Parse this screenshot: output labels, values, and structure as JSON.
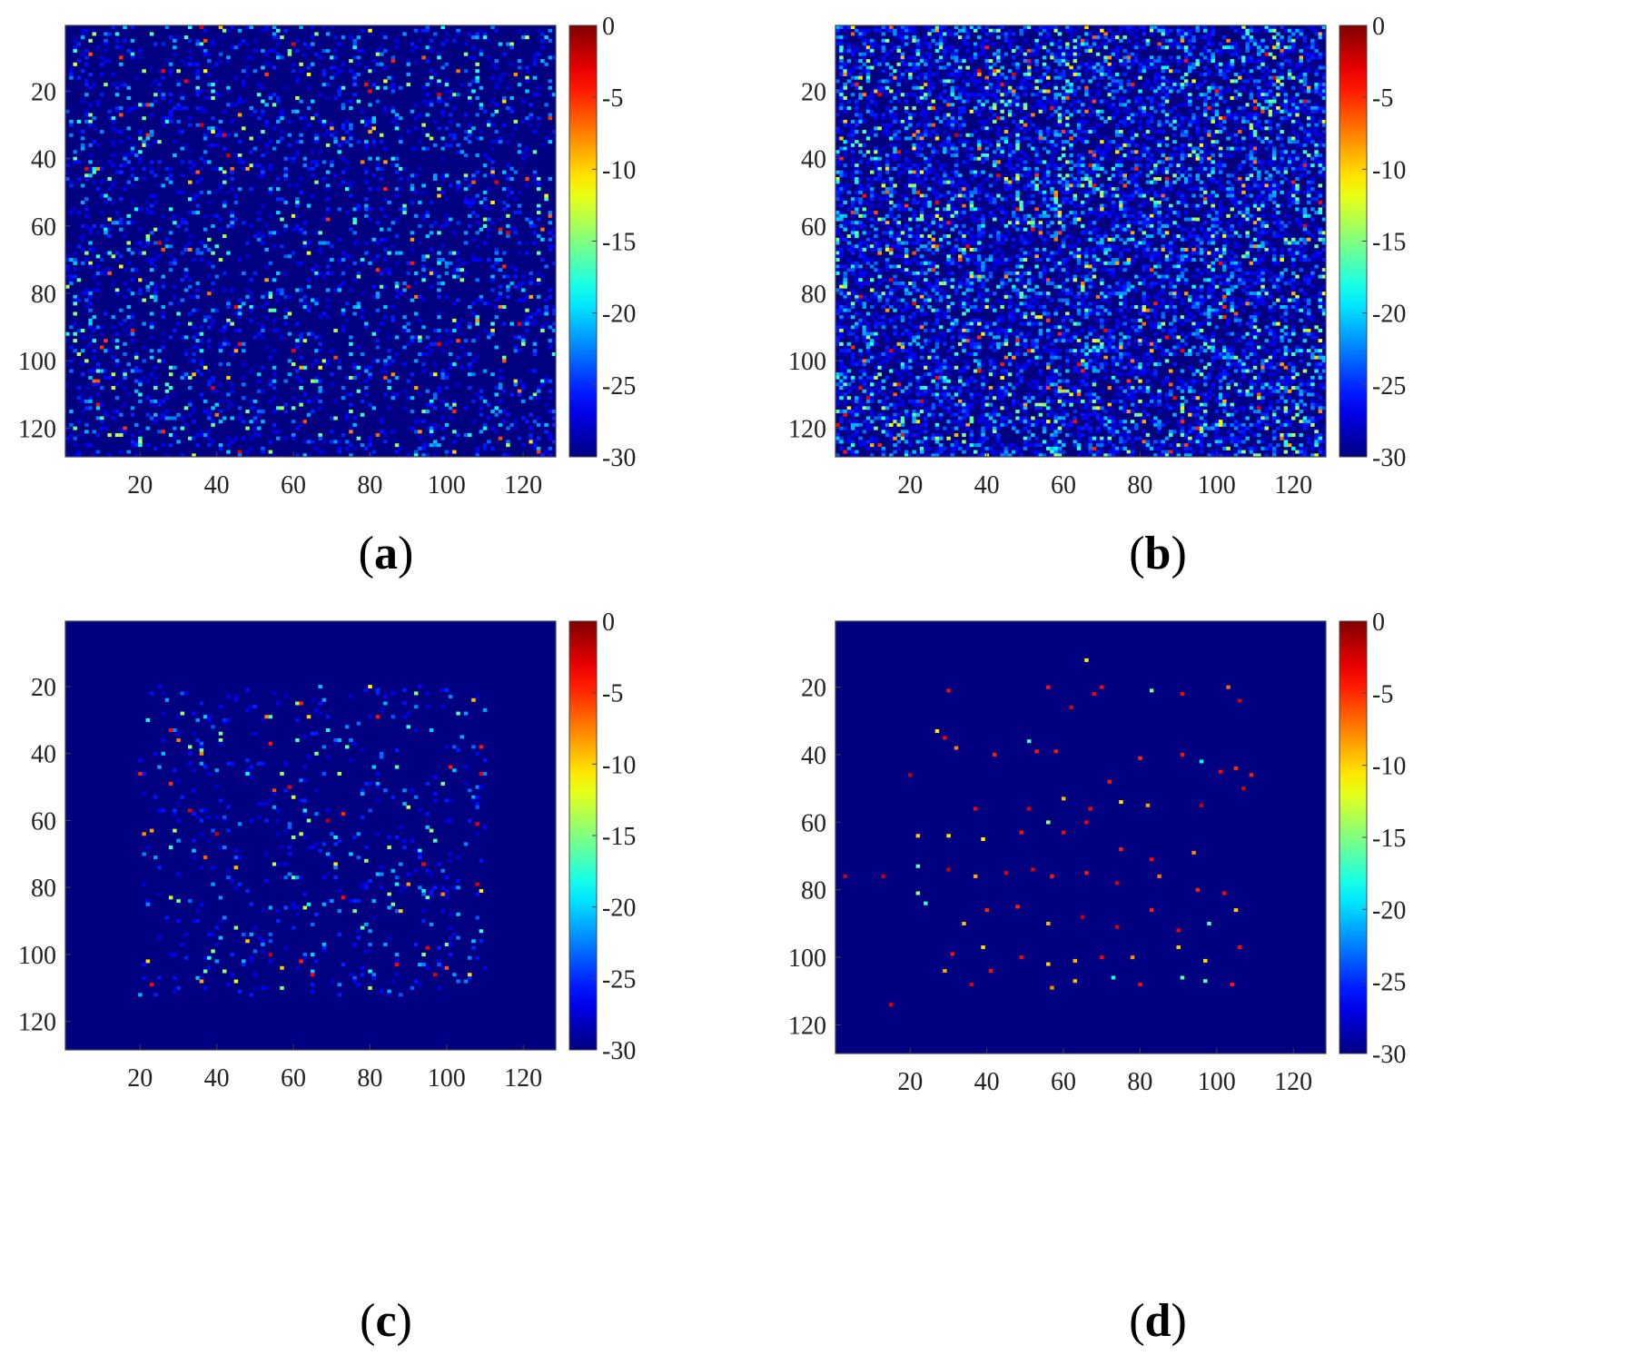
{
  "chart_data": [
    {
      "type": "heatmap",
      "panel_label": "a",
      "grid_size": [
        128,
        128
      ],
      "xlim": [
        0.5,
        128.5
      ],
      "ylim": [
        0.5,
        128.5
      ],
      "y_reversed": true,
      "x_ticks": [
        20,
        40,
        60,
        80,
        100,
        120
      ],
      "y_ticks": [
        20,
        40,
        60,
        80,
        100,
        120
      ],
      "colorbar": {
        "colormap": "jet",
        "min": -30,
        "max": 0,
        "ticks": [
          0,
          -5,
          -10,
          -15,
          -20,
          -25,
          -30
        ]
      },
      "background_value": -30,
      "scatter_density": 0.16,
      "scatter_region": [
        1,
        128,
        1,
        128
      ],
      "highlights": [
        [
          36,
          30
        ],
        [
          46,
          27
        ],
        [
          80,
          20
        ],
        [
          98,
          21
        ],
        [
          25,
          35
        ],
        [
          73,
          34
        ],
        [
          43,
          39
        ],
        [
          98,
          51
        ],
        [
          76,
          58
        ],
        [
          22,
          64
        ],
        [
          95,
          69
        ],
        [
          53,
          76
        ],
        [
          38,
          80
        ],
        [
          45,
          84
        ],
        [
          108,
          88
        ],
        [
          39,
          108
        ],
        [
          62,
          102
        ],
        [
          82,
          73
        ],
        [
          60,
          97
        ],
        [
          65,
          106
        ]
      ]
    },
    {
      "type": "heatmap",
      "panel_label": "b",
      "grid_size": [
        128,
        128
      ],
      "xlim": [
        0.5,
        128.5
      ],
      "ylim": [
        0.5,
        128.5
      ],
      "y_reversed": true,
      "x_ticks": [
        20,
        40,
        60,
        80,
        100,
        120
      ],
      "y_ticks": [
        20,
        40,
        60,
        80,
        100,
        120
      ],
      "colorbar": {
        "colormap": "jet",
        "min": -30,
        "max": 0,
        "ticks": [
          0,
          -5,
          -10,
          -15,
          -20,
          -25,
          -30
        ]
      },
      "background_value": -30,
      "scatter_density": 0.45,
      "scatter_region": [
        1,
        128,
        1,
        128
      ],
      "highlights": [
        [
          32,
          33
        ],
        [
          56,
          20
        ],
        [
          78,
          18
        ],
        [
          100,
          20
        ],
        [
          43,
          41
        ],
        [
          70,
          55
        ],
        [
          77,
          70
        ],
        [
          54,
          62
        ],
        [
          92,
          80
        ],
        [
          102,
          84
        ],
        [
          38,
          103
        ],
        [
          64,
          101
        ],
        [
          87,
          93
        ],
        [
          108,
          46
        ],
        [
          26,
          64
        ],
        [
          45,
          75
        ]
      ]
    },
    {
      "type": "heatmap",
      "panel_label": "c",
      "grid_size": [
        128,
        128
      ],
      "xlim": [
        0.5,
        128.5
      ],
      "ylim": [
        0.5,
        128.5
      ],
      "y_reversed": true,
      "x_ticks": [
        20,
        40,
        60,
        80,
        100,
        120
      ],
      "y_ticks": [
        20,
        40,
        60,
        80,
        100,
        120
      ],
      "colorbar": {
        "colormap": "jet",
        "min": -30,
        "max": 0,
        "ticks": [
          0,
          -5,
          -10,
          -15,
          -20,
          -25,
          -30
        ]
      },
      "background_value": -30,
      "scatter_density": 0.07,
      "scatter_region": [
        20,
        110,
        20,
        112
      ],
      "highlights": [
        [
          20,
          46
        ],
        [
          28,
          33
        ],
        [
          30,
          36
        ],
        [
          53,
          29
        ],
        [
          62,
          25
        ],
        [
          80,
          20
        ],
        [
          92,
          22
        ],
        [
          107,
          24
        ],
        [
          109,
          38
        ],
        [
          109,
          46
        ],
        [
          36,
          40
        ],
        [
          54,
          37
        ],
        [
          87,
          44
        ],
        [
          40,
          64
        ],
        [
          45,
          74
        ],
        [
          63,
          57
        ],
        [
          69,
          60
        ],
        [
          79,
          72
        ],
        [
          94,
          73
        ],
        [
          99,
          82
        ],
        [
          108,
          79
        ],
        [
          36,
          108
        ],
        [
          54,
          100
        ],
        [
          62,
          102
        ],
        [
          65,
          106
        ],
        [
          87,
          103
        ],
        [
          97,
          106
        ],
        [
          106,
          106
        ],
        [
          23,
          63
        ],
        [
          33,
          57
        ],
        [
          101,
          44
        ]
      ]
    },
    {
      "type": "heatmap",
      "panel_label": "d",
      "grid_size": [
        128,
        128
      ],
      "xlim": [
        0.5,
        128.5
      ],
      "ylim": [
        0.5,
        128.5
      ],
      "y_reversed": true,
      "x_ticks": [
        20,
        40,
        60,
        80,
        100,
        120
      ],
      "y_ticks": [
        20,
        40,
        60,
        80,
        100,
        120
      ],
      "colorbar": {
        "colormap": "jet",
        "min": -30,
        "max": 0,
        "ticks": [
          0,
          -5,
          -10,
          -15,
          -20,
          -25,
          -30
        ]
      },
      "background_value": -30,
      "scatter_density": 0,
      "scatter_region": [
        20,
        110,
        20,
        112
      ],
      "highlights": [
        [
          30,
          21
        ],
        [
          56,
          20
        ],
        [
          62,
          26
        ],
        [
          68,
          22
        ],
        [
          70,
          20
        ],
        [
          83,
          21
        ],
        [
          91,
          22
        ],
        [
          103,
          20
        ],
        [
          106,
          24
        ],
        [
          27,
          33
        ],
        [
          29,
          35
        ],
        [
          20,
          46
        ],
        [
          32,
          38
        ],
        [
          42,
          40
        ],
        [
          51,
          36
        ],
        [
          53,
          39
        ],
        [
          58,
          39
        ],
        [
          72,
          48
        ],
        [
          80,
          41
        ],
        [
          91,
          40
        ],
        [
          96,
          42
        ],
        [
          101,
          45
        ],
        [
          105,
          44
        ],
        [
          109,
          46
        ],
        [
          37,
          56
        ],
        [
          51,
          56
        ],
        [
          60,
          53
        ],
        [
          67,
          56
        ],
        [
          75,
          54
        ],
        [
          82,
          55
        ],
        [
          96,
          55
        ],
        [
          107,
          50
        ],
        [
          22,
          64
        ],
        [
          30,
          64
        ],
        [
          39,
          65
        ],
        [
          49,
          63
        ],
        [
          56,
          60
        ],
        [
          60,
          63
        ],
        [
          66,
          60
        ],
        [
          75,
          68
        ],
        [
          83,
          71
        ],
        [
          94,
          69
        ],
        [
          22,
          73
        ],
        [
          30,
          74
        ],
        [
          37,
          76
        ],
        [
          45,
          75
        ],
        [
          52,
          74
        ],
        [
          57,
          76
        ],
        [
          66,
          75
        ],
        [
          74,
          78
        ],
        [
          85,
          76
        ],
        [
          95,
          80
        ],
        [
          102,
          81
        ],
        [
          22,
          81
        ],
        [
          24,
          84
        ],
        [
          34,
          90
        ],
        [
          40,
          86
        ],
        [
          48,
          85
        ],
        [
          56,
          90
        ],
        [
          65,
          88
        ],
        [
          74,
          91
        ],
        [
          83,
          86
        ],
        [
          90,
          92
        ],
        [
          98,
          90
        ],
        [
          105,
          86
        ],
        [
          31,
          99
        ],
        [
          39,
          97
        ],
        [
          49,
          100
        ],
        [
          56,
          102
        ],
        [
          63,
          101
        ],
        [
          70,
          100
        ],
        [
          78,
          100
        ],
        [
          90,
          97
        ],
        [
          97,
          101
        ],
        [
          106,
          97
        ],
        [
          29,
          104
        ],
        [
          36,
          108
        ],
        [
          41,
          104
        ],
        [
          57,
          109
        ],
        [
          63,
          107
        ],
        [
          73,
          106
        ],
        [
          80,
          108
        ],
        [
          91,
          106
        ],
        [
          97,
          107
        ],
        [
          104,
          108
        ],
        [
          15,
          114
        ],
        [
          13,
          76
        ],
        [
          3,
          76
        ],
        [
          66,
          12
        ]
      ]
    }
  ]
}
